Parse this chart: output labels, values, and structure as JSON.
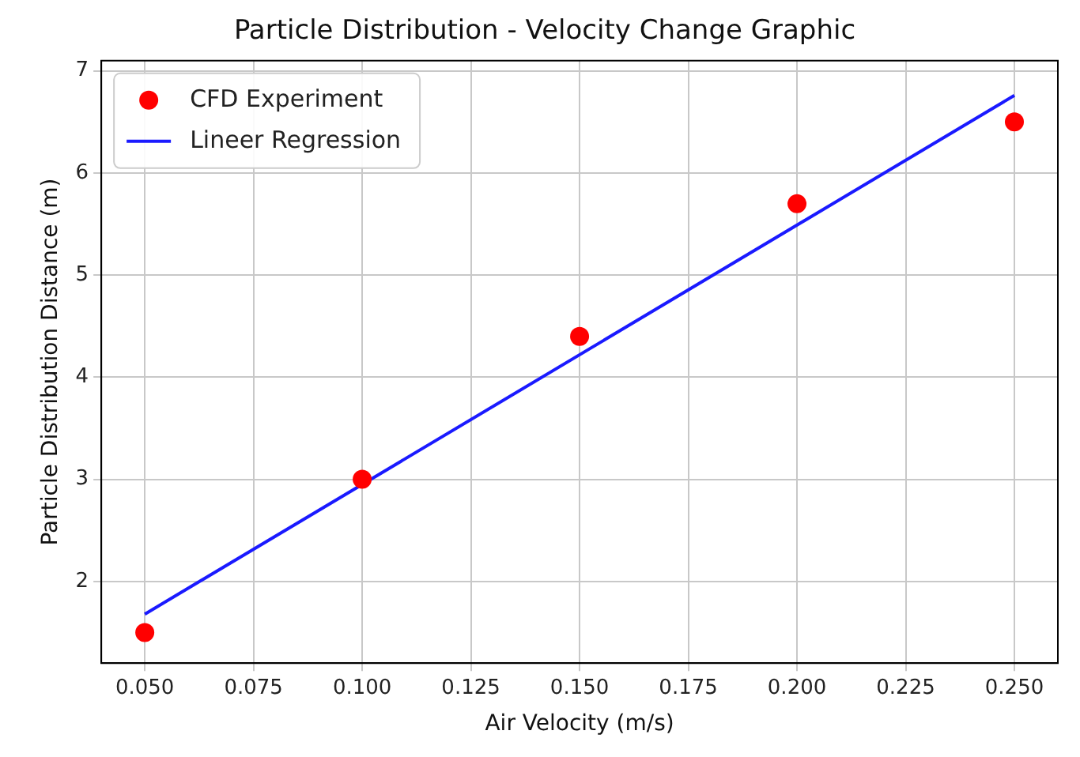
{
  "chart_data": {
    "type": "scatter",
    "title": "Particle Distribution - Velocity Change Graphic",
    "xlabel": "Air Velocity (m/s)",
    "ylabel": "Particle Distribution Distance (m)",
    "series": [
      {
        "name": "CFD Experiment",
        "color": "#ff0000",
        "marker": "circle",
        "x": [
          0.05,
          0.1,
          0.15,
          0.2,
          0.25
        ],
        "values": [
          1.5,
          3.0,
          4.4,
          5.7,
          6.5
        ]
      },
      {
        "name": "Lineer Regression",
        "type": "line",
        "color": "#1a1aff",
        "marker": "none",
        "line_style": "solid",
        "x": [
          0.05,
          0.25
        ],
        "values": [
          1.68,
          6.76
        ]
      }
    ],
    "xlim": [
      0.04,
      0.26
    ],
    "ylim": [
      1.2,
      7.1
    ],
    "xticks": [
      {
        "value": 0.05,
        "label": "0.050"
      },
      {
        "value": 0.075,
        "label": "0.075"
      },
      {
        "value": 0.1,
        "label": "0.100"
      },
      {
        "value": 0.125,
        "label": "0.125"
      },
      {
        "value": 0.15,
        "label": "0.150"
      },
      {
        "value": 0.175,
        "label": "0.175"
      },
      {
        "value": 0.2,
        "label": "0.200"
      },
      {
        "value": 0.225,
        "label": "0.225"
      },
      {
        "value": 0.25,
        "label": "0.250"
      }
    ],
    "yticks": [
      2,
      3,
      4,
      5,
      6,
      7
    ],
    "grid": true,
    "legend": "top left"
  }
}
